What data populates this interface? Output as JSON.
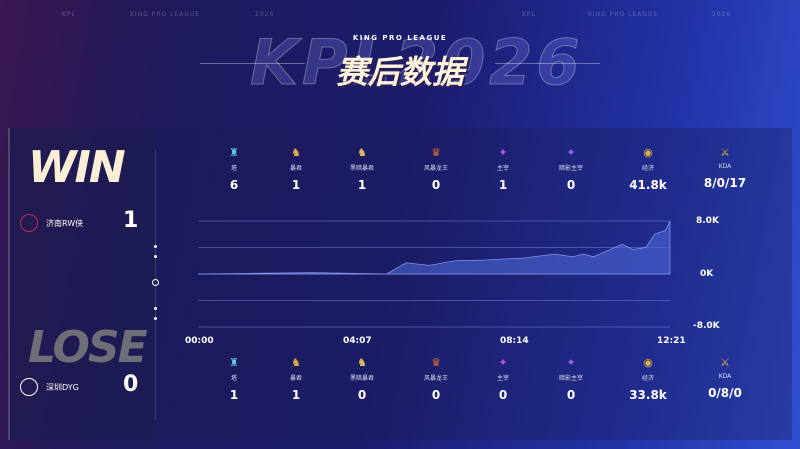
{
  "header": {
    "top_left": [
      "KPL",
      "KING PRO LEAGUE",
      "2026"
    ],
    "top_right": [
      "KPL",
      "KING PRO LEAGUE",
      "2026"
    ],
    "watermark": "KPL2026",
    "league": "KING PRO LEAGUE",
    "title": "赛后数据"
  },
  "winner": {
    "result": "WIN",
    "team": "济南RW侠",
    "score": "1",
    "logo_color": "#c0245a"
  },
  "loser": {
    "result": "LOSE",
    "team": "深圳DYG",
    "score": "0",
    "logo_color": "#ffffff"
  },
  "stat_labels": [
    {
      "icon": "tower-icon",
      "glyph": "♜",
      "color": "#5ec8e8",
      "label": "塔"
    },
    {
      "icon": "tyrant-icon",
      "glyph": "♞",
      "color": "#e0b040",
      "label": "暴君"
    },
    {
      "icon": "dark-tyrant-icon",
      "glyph": "♞",
      "color": "#e0c060",
      "label": "黑暗暴君"
    },
    {
      "icon": "storm-dragon-icon",
      "glyph": "♛",
      "color": "#e07030",
      "label": "风暴龙王"
    },
    {
      "icon": "overlord-icon",
      "glyph": "✦",
      "color": "#c050e0",
      "label": "主宰"
    },
    {
      "icon": "shadow-overlord-icon",
      "glyph": "✦",
      "color": "#a060f0",
      "label": "暗影主宰"
    },
    {
      "icon": "gold-icon",
      "glyph": "◉",
      "color": "#e8b040",
      "label": "经济"
    },
    {
      "icon": "sword-icon",
      "glyph": "⚔",
      "color": "#e8b040",
      "label": "KDA"
    }
  ],
  "winner_stats": [
    "6",
    "1",
    "1",
    "0",
    "1",
    "0",
    "41.8k",
    "8/0/17"
  ],
  "loser_stats": [
    "1",
    "1",
    "0",
    "0",
    "0",
    "0",
    "33.8k",
    "0/8/0"
  ],
  "chart_data": {
    "type": "area",
    "xlabel": "",
    "ylabel": "",
    "x_ticks": [
      "00:00",
      "04:07",
      "08:14",
      "12:21"
    ],
    "y_ticks": [
      "8.0K",
      "0K",
      "-8.0K"
    ],
    "ylim": [
      -8000,
      8000
    ],
    "xlim_seconds": [
      0,
      741
    ],
    "grid": true,
    "series": [
      {
        "t": [
          0,
          84,
          180,
          296,
          307,
          327,
          363,
          403,
          448,
          509,
          560,
          588,
          605,
          621,
          666,
          683,
          703,
          717,
          734,
          741
        ],
        "values": [
          0,
          100,
          200,
          0,
          600,
          1700,
          1300,
          2000,
          2100,
          2400,
          3000,
          2600,
          3000,
          2600,
          4500,
          3700,
          4000,
          6000,
          6600,
          8000
        ]
      }
    ]
  }
}
